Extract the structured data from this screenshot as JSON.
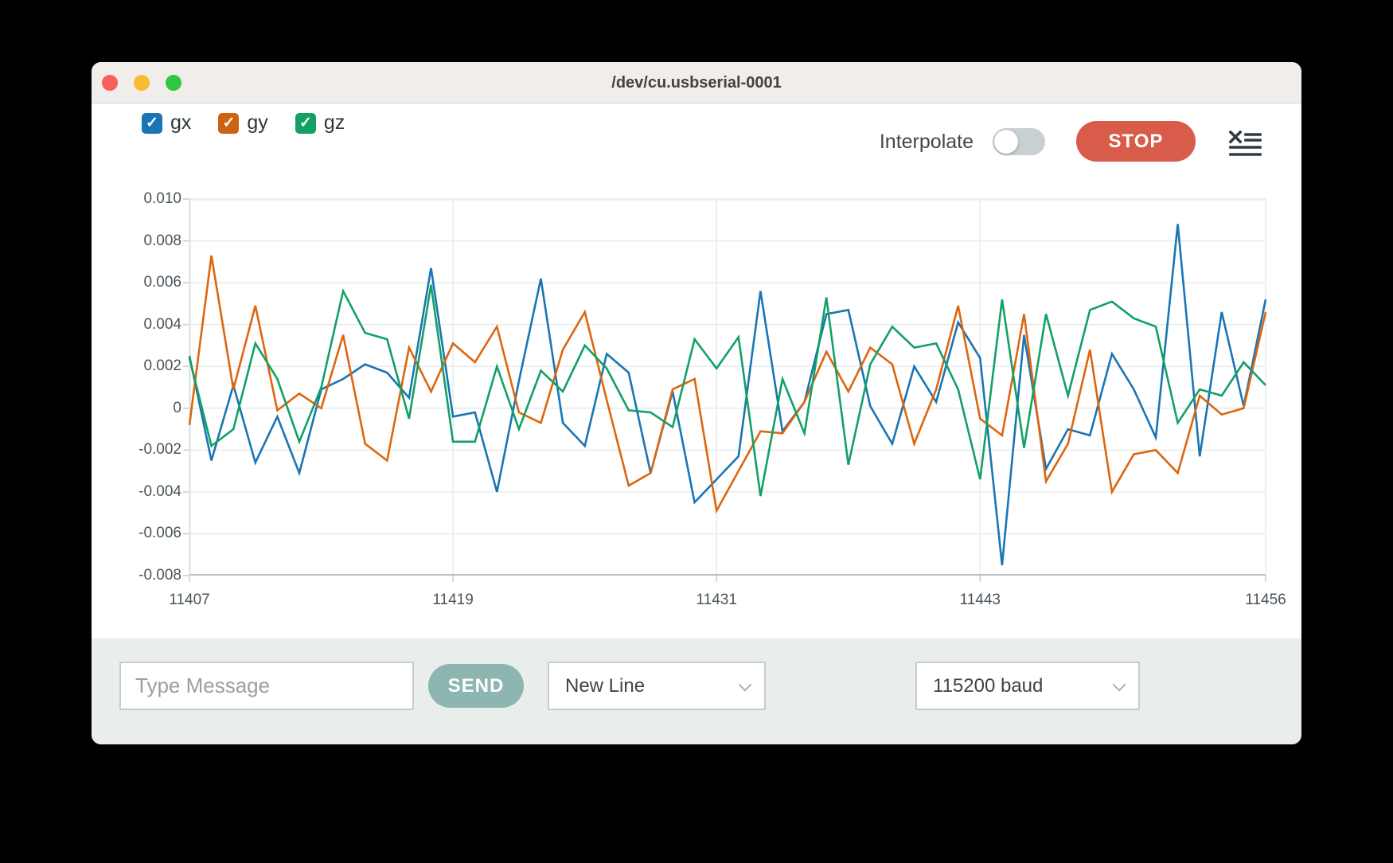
{
  "window": {
    "title": "/dev/cu.usbserial-0001"
  },
  "titlebar_buttons": {
    "close_color": "#f6605a",
    "minimize_color": "#f8bc2e",
    "zoom_color": "#30c841"
  },
  "legend": {
    "items": [
      {
        "label": "gx",
        "checked": true,
        "color": "#1a75b5"
      },
      {
        "label": "gy",
        "checked": true,
        "color": "#cd6310"
      },
      {
        "label": "gz",
        "checked": true,
        "color": "#12a065"
      }
    ]
  },
  "controls": {
    "interpolate_label": "Interpolate",
    "interpolate_on": false,
    "stop_label": "STOP",
    "stop_color": "#d85c49",
    "clearlist_icon": "clear-list-icon"
  },
  "chart_data": {
    "type": "line",
    "title": "",
    "xlabel": "",
    "ylabel": "",
    "ylim": [
      -0.008,
      0.01
    ],
    "grid": true,
    "legend_position": "top-left",
    "n_points": 50,
    "x_start": 11407,
    "x_end": 11456,
    "x_ticks": [
      {
        "label": "11407",
        "index": 0
      },
      {
        "label": "11419",
        "index": 12
      },
      {
        "label": "11431",
        "index": 24
      },
      {
        "label": "11443",
        "index": 36
      },
      {
        "label": "11456",
        "index": 49
      }
    ],
    "y_tick_labels": [
      "0.010",
      "0.008",
      "0.006",
      "0.004",
      "0.002",
      "0",
      "-0.002",
      "-0.004",
      "-0.006",
      "-0.008"
    ],
    "y_tick_values": [
      0.01,
      0.008,
      0.006,
      0.004,
      0.002,
      0,
      -0.002,
      -0.004,
      -0.006,
      -0.008
    ],
    "series": [
      {
        "name": "gx",
        "color": "#1a75b5",
        "values": [
          0.0025,
          -0.0025,
          0.0011,
          -0.0026,
          -0.0004,
          -0.0031,
          0.0009,
          0.0014,
          0.0021,
          0.0017,
          0.0005,
          0.0067,
          -0.0004,
          -0.0002,
          -0.004,
          0.0013,
          0.0062,
          -0.0007,
          -0.0018,
          0.0026,
          0.0017,
          -0.0031,
          0.0008,
          -0.0045,
          -0.0034,
          -0.0023,
          0.0056,
          -0.0011,
          0.0003,
          0.0045,
          0.0047,
          0.0001,
          -0.0017,
          0.002,
          0.0003,
          0.0041,
          0.0024,
          -0.0075,
          0.0035,
          -0.0029,
          -0.001,
          -0.0013,
          0.0026,
          0.0009,
          -0.0014,
          0.0088,
          -0.0023,
          0.0046,
          0.0001,
          0.0052
        ]
      },
      {
        "name": "gy",
        "color": "#dd660e",
        "values": [
          -0.0008,
          0.0073,
          0.0009,
          0.0049,
          -0.0001,
          0.0007,
          0.0,
          0.0035,
          -0.0017,
          -0.0025,
          0.0029,
          0.0008,
          0.0031,
          0.0022,
          0.0039,
          -0.0002,
          -0.0007,
          0.0028,
          0.0046,
          0.0004,
          -0.0037,
          -0.0031,
          0.0009,
          0.0014,
          -0.0049,
          -0.003,
          -0.0011,
          -0.0012,
          0.0003,
          0.0027,
          0.0008,
          0.0029,
          0.0021,
          -0.0017,
          0.0009,
          0.0049,
          -0.0005,
          -0.0013,
          0.0045,
          -0.0035,
          -0.0017,
          0.0028,
          -0.004,
          -0.0022,
          -0.002,
          -0.0031,
          0.0006,
          -0.0003,
          0.0,
          0.0046
        ]
      },
      {
        "name": "gz",
        "color": "#12a065",
        "values": [
          0.0024,
          -0.0018,
          -0.001,
          0.0031,
          0.0014,
          -0.0016,
          0.001,
          0.0056,
          0.0036,
          0.0033,
          -0.0005,
          0.0059,
          -0.0016,
          -0.0016,
          0.002,
          -0.001,
          0.0018,
          0.0008,
          0.003,
          0.0019,
          -0.0001,
          -0.0002,
          -0.0009,
          0.0033,
          0.0019,
          0.0034,
          -0.0042,
          0.0014,
          -0.0012,
          0.0053,
          -0.0027,
          0.0021,
          0.0039,
          0.0029,
          0.0031,
          0.0009,
          -0.0034,
          0.0052,
          -0.0019,
          0.0045,
          0.0006,
          0.0047,
          0.0051,
          0.0043,
          0.0039,
          -0.0007,
          0.0009,
          0.0006,
          0.0022,
          0.0011
        ]
      }
    ],
    "colors": {
      "gridline": "#e7ebee",
      "axis_bottom": "#b9c1c4",
      "axis_left": "#d8dde0",
      "tick_text": "#4a545a"
    }
  },
  "message_bar": {
    "input_value": "",
    "input_placeholder": "Type Message",
    "send_label": "SEND",
    "line_ending_selected": "New Line",
    "baud_selected": "115200 baud"
  }
}
